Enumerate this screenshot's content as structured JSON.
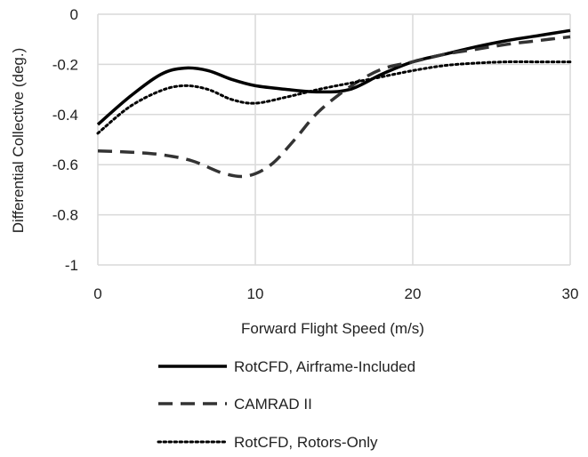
{
  "chart_data": {
    "type": "line",
    "xlabel": "Forward Flight Speed (m/s)",
    "ylabel": "Differential Collective (deg.)",
    "xlim": [
      0,
      30
    ],
    "ylim": [
      -1,
      0
    ],
    "x_ticks": [
      "0",
      "10",
      "20",
      "30"
    ],
    "y_ticks": [
      "0",
      "-0.2",
      "-0.4",
      "-0.6",
      "-0.8",
      "-1"
    ],
    "grid": true,
    "legend_position": "bottom",
    "series": [
      {
        "name": "RotCFD, Airframe-Included",
        "style": "solid",
        "color": "#000000",
        "points": [
          [
            0,
            -0.44
          ],
          [
            2,
            -0.33
          ],
          [
            4,
            -0.24
          ],
          [
            5.5,
            -0.215
          ],
          [
            7,
            -0.225
          ],
          [
            8.5,
            -0.26
          ],
          [
            10,
            -0.285
          ],
          [
            12,
            -0.3
          ],
          [
            14,
            -0.31
          ],
          [
            16,
            -0.3
          ],
          [
            18,
            -0.24
          ],
          [
            20,
            -0.19
          ],
          [
            22,
            -0.16
          ],
          [
            24,
            -0.13
          ],
          [
            26,
            -0.105
          ],
          [
            28,
            -0.085
          ],
          [
            30,
            -0.065
          ]
        ]
      },
      {
        "name": "CAMRAD II",
        "style": "dashed",
        "color": "#333333",
        "points": [
          [
            0,
            -0.545
          ],
          [
            2,
            -0.55
          ],
          [
            4,
            -0.56
          ],
          [
            6,
            -0.585
          ],
          [
            8,
            -0.635
          ],
          [
            9.5,
            -0.645
          ],
          [
            11,
            -0.6
          ],
          [
            12.5,
            -0.5
          ],
          [
            14,
            -0.39
          ],
          [
            16,
            -0.29
          ],
          [
            18,
            -0.22
          ],
          [
            20,
            -0.19
          ],
          [
            22,
            -0.16
          ],
          [
            24,
            -0.14
          ],
          [
            26,
            -0.12
          ],
          [
            28,
            -0.105
          ],
          [
            30,
            -0.09
          ]
        ]
      },
      {
        "name": "RotCFD, Rotors-Only",
        "style": "dotted",
        "color": "#000000",
        "points": [
          [
            0,
            -0.475
          ],
          [
            2,
            -0.37
          ],
          [
            4,
            -0.305
          ],
          [
            5.5,
            -0.285
          ],
          [
            7,
            -0.3
          ],
          [
            8.5,
            -0.34
          ],
          [
            10,
            -0.355
          ],
          [
            12,
            -0.33
          ],
          [
            14,
            -0.3
          ],
          [
            16,
            -0.275
          ],
          [
            18,
            -0.25
          ],
          [
            20,
            -0.225
          ],
          [
            22,
            -0.205
          ],
          [
            24,
            -0.195
          ],
          [
            26,
            -0.19
          ],
          [
            28,
            -0.19
          ],
          [
            30,
            -0.19
          ]
        ]
      }
    ]
  }
}
